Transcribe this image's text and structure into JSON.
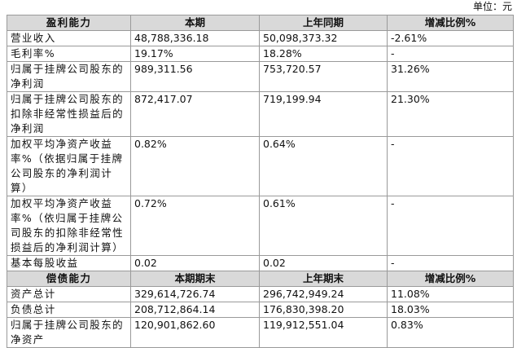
{
  "unit": "单位：元",
  "table": {
    "header_1": [
      "盈利能力",
      "本期",
      "上年同期",
      "增减比例%"
    ],
    "rows_1": [
      [
        "营业收入",
        "48,788,336.18",
        "50,098,373.32",
        "-2.61%"
      ],
      [
        "毛利率%",
        "19.17%",
        "18.28%",
        "-"
      ],
      [
        "归属于挂牌公司股东的净利润",
        "989,311.56",
        "753,720.57",
        "31.26%"
      ],
      [
        "归属于挂牌公司股东的扣除非经常性损益后的净利润",
        "872,417.07",
        "719,199.94",
        "21.30%"
      ],
      [
        "加权平均净资产收益率%（依据归属于挂牌公司股东的净利润计算）",
        "0.82%",
        "0.64%",
        "-"
      ],
      [
        "加权平均净资产收益率%（依归属于挂牌公司股东的扣除非经常性损益后的净利润计算）",
        "0.72%",
        "0.61%",
        "-"
      ],
      [
        "基本每股收益",
        "0.02",
        "0.02",
        "-"
      ]
    ],
    "header_2": [
      "偿债能力",
      "本期期末",
      "上年期末",
      "增减比例%"
    ],
    "rows_2": [
      [
        "资产总计",
        "329,614,726.74",
        "296,742,949.24",
        "11.08%"
      ],
      [
        "负债总计",
        "208,712,864.14",
        "176,830,398.20",
        "18.03%"
      ],
      [
        "归属于挂牌公司股东的净资产",
        "120,901,862.60",
        "119,912,551.04",
        "0.83%"
      ]
    ]
  }
}
